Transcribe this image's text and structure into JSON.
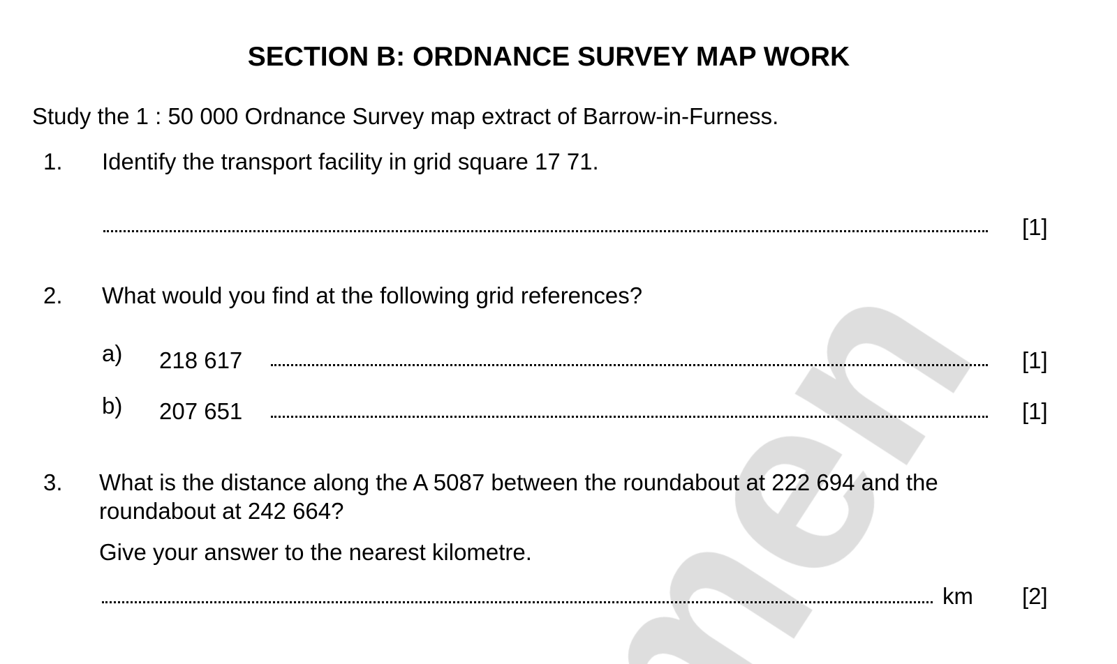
{
  "title": "SECTION B: ORDNANCE SURVEY MAP WORK",
  "intro": "Study the 1 : 50 000 Ordnance Survey map extract of Barrow-in-Furness.",
  "questions": [
    {
      "number": "1.",
      "text": "Identify the transport facility in grid square 17 71.",
      "marks": "[1]"
    },
    {
      "number": "2.",
      "text": "What would you find at the following grid references?",
      "parts": [
        {
          "label": "a)",
          "ref": "218 617",
          "marks": "[1]"
        },
        {
          "label": "b)",
          "ref": "207 651",
          "marks": "[1]"
        }
      ]
    },
    {
      "number": "3.",
      "text_line1": "What is the distance along the A 5087 between the roundabout at 222 694 and the",
      "text_line2": "roundabout at 242 664?",
      "instruction": "Give your answer to the nearest kilometre.",
      "unit": "km",
      "marks": "[2]"
    }
  ],
  "watermark": "men"
}
